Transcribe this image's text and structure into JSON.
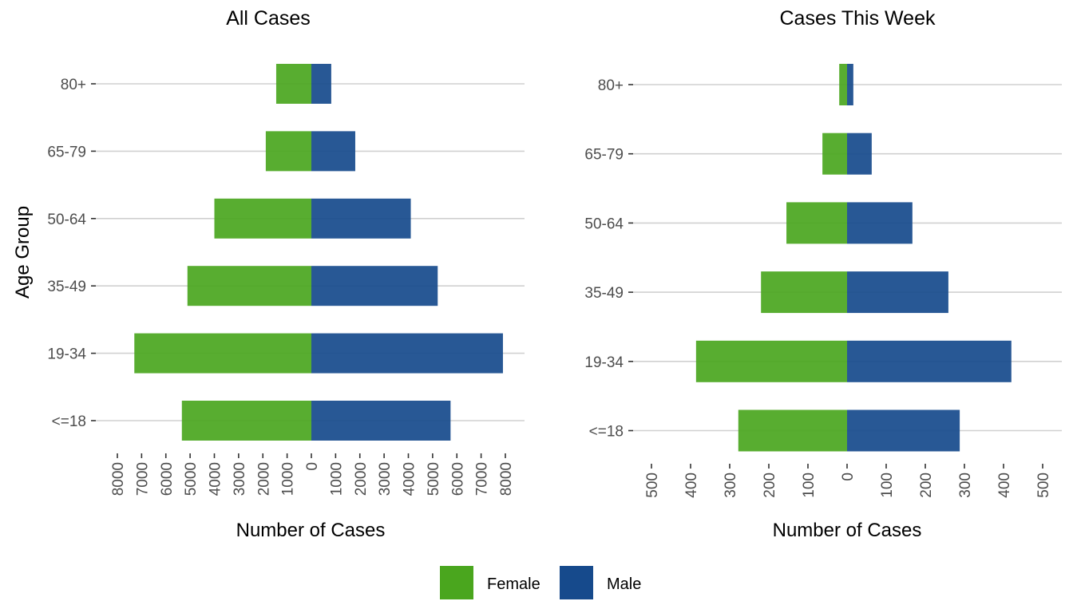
{
  "chart_data": [
    {
      "type": "bar",
      "orientation": "horizontal",
      "layout": "population-pyramid",
      "title": "All Cases",
      "xlabel": "Number of Cases",
      "ylabel": "Age Group",
      "categories": [
        "<=18",
        "19-34",
        "35-49",
        "50-64",
        "65-79",
        "80+"
      ],
      "series": [
        {
          "name": "Female",
          "direction": "left",
          "values": [
            5340,
            7300,
            5110,
            4000,
            1880,
            1450
          ]
        },
        {
          "name": "Male",
          "direction": "right",
          "values": [
            5740,
            7900,
            5210,
            4100,
            1810,
            820
          ]
        }
      ],
      "xlim": [
        -8000,
        8000
      ],
      "xticks": [
        -8000,
        -7000,
        -6000,
        -5000,
        -4000,
        -3000,
        -2000,
        -1000,
        0,
        1000,
        2000,
        3000,
        4000,
        5000,
        6000,
        7000,
        8000
      ],
      "xtick_labels": [
        "8000",
        "7000",
        "6000",
        "5000",
        "4000",
        "3000",
        "2000",
        "1000",
        "0",
        "1000",
        "2000",
        "3000",
        "4000",
        "5000",
        "6000",
        "7000",
        "8000"
      ],
      "grid": "horizontal-major"
    },
    {
      "type": "bar",
      "orientation": "horizontal",
      "layout": "population-pyramid",
      "title": "Cases This Week",
      "xlabel": "Number of Cases",
      "ylabel": "",
      "categories": [
        "<=18",
        "19-34",
        "35-49",
        "50-64",
        "65-79",
        "80+"
      ],
      "series": [
        {
          "name": "Female",
          "direction": "left",
          "values": [
            278,
            386,
            220,
            155,
            63,
            20
          ]
        },
        {
          "name": "Male",
          "direction": "right",
          "values": [
            288,
            420,
            259,
            167,
            63,
            16
          ]
        }
      ],
      "xlim": [
        -500,
        500
      ],
      "xticks": [
        -500,
        -400,
        -300,
        -200,
        -100,
        0,
        100,
        200,
        300,
        400,
        500
      ],
      "xtick_labels": [
        "500",
        "400",
        "300",
        "200",
        "100",
        "0",
        "100",
        "200",
        "300",
        "400",
        "500"
      ],
      "grid": "horizontal-major"
    }
  ],
  "legend": {
    "position": "bottom",
    "items": [
      {
        "label": "Female",
        "color": "#4aa61e"
      },
      {
        "label": "Male",
        "color": "#164a8c"
      }
    ]
  },
  "colors": {
    "female_bar": "#4aa61e",
    "male_bar": "#164a8c",
    "bar_opacity": 0.92
  }
}
